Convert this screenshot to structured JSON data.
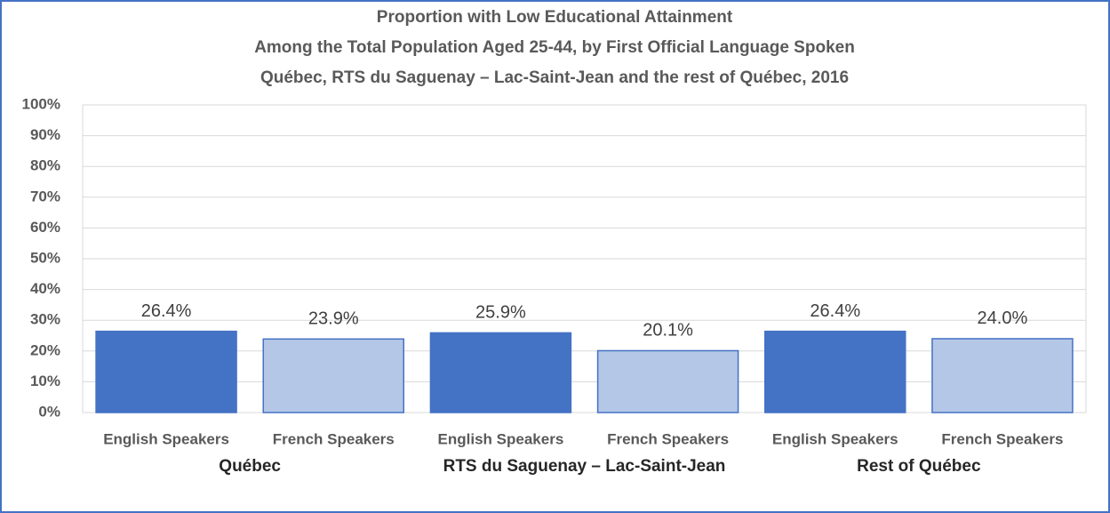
{
  "chart_data": {
    "type": "bar",
    "title": [
      "Proportion with Low Educational Attainment",
      "Among the Total Population Aged 25-44, by First Official Language Spoken",
      "Québec, RTS du Saguenay – Lac-Saint-Jean and the rest of Québec, 2016"
    ],
    "categories": [
      "English Speakers",
      "French Speakers",
      "English Speakers",
      "French Speakers",
      "English Speakers",
      "French Speakers"
    ],
    "groups": [
      "Québec",
      "RTS du Saguenay – Lac-Saint-Jean",
      "Rest of Québec"
    ],
    "values": [
      26.4,
      23.9,
      25.9,
      20.1,
      26.4,
      24.0
    ],
    "value_labels": [
      "26.4%",
      "23.9%",
      "25.9%",
      "20.1%",
      "26.4%",
      "24.0%"
    ],
    "colors": [
      "#4472c4",
      "#b4c7e7",
      "#4472c4",
      "#b4c7e7",
      "#4472c4",
      "#b4c7e7"
    ],
    "ylim": [
      0,
      100
    ],
    "yticks": [
      {
        "value": 0,
        "label": "0%"
      },
      {
        "value": 10,
        "label": "10%"
      },
      {
        "value": 20,
        "label": "20%"
      },
      {
        "value": 30,
        "label": "30%"
      },
      {
        "value": 40,
        "label": "40%"
      },
      {
        "value": 50,
        "label": "50%"
      },
      {
        "value": 60,
        "label": "60%"
      },
      {
        "value": 70,
        "label": "70%"
      },
      {
        "value": 80,
        "label": "80%"
      },
      {
        "value": 90,
        "label": "90%"
      },
      {
        "value": 100,
        "label": "100%"
      }
    ],
    "grid": true
  }
}
